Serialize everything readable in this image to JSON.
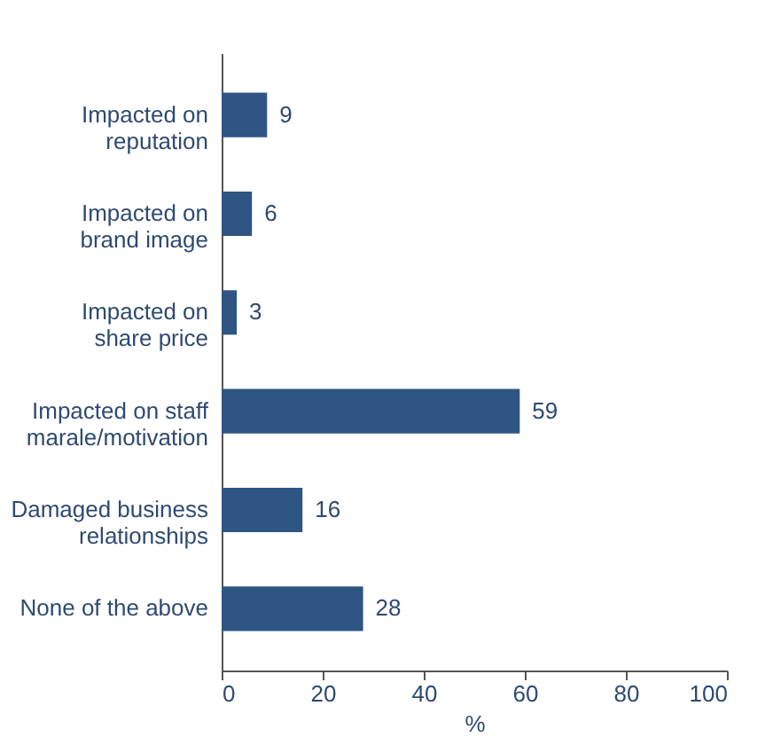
{
  "chart_data": {
    "type": "bar",
    "orientation": "horizontal",
    "categories": [
      "Impacted on\nreputation",
      "Impacted on\nbrand image",
      "Impacted on\nshare price",
      "Impacted on staff\nmarale/motivation",
      "Damaged business\nrelationships",
      "None of the above"
    ],
    "values": [
      9,
      6,
      3,
      59,
      16,
      28
    ],
    "color": "#2e5583",
    "xlim": [
      0,
      100
    ],
    "xticks": [
      0,
      20,
      40,
      60,
      80,
      100
    ],
    "xlabel": "%",
    "data_labels": true,
    "grid": false
  }
}
